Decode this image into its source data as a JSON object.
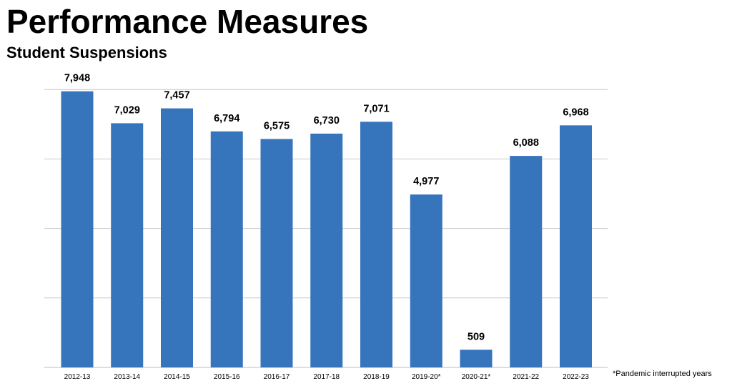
{
  "header": {
    "title": "Performance Measures",
    "subtitle": "Student Suspensions"
  },
  "footnote": "*Pandemic interrupted years",
  "chart_data": {
    "type": "bar",
    "title": "Student Suspensions",
    "xlabel": "",
    "ylabel": "",
    "categories": [
      "2012-13",
      "2013-14",
      "2014-15",
      "2015-16",
      "2016-17",
      "2017-18",
      "2018-19",
      "2019-20*",
      "2020-21*",
      "2021-22",
      "2022-23"
    ],
    "values": [
      7948,
      7029,
      7457,
      6794,
      6575,
      6730,
      7071,
      4977,
      509,
      6088,
      6968
    ],
    "value_labels": [
      "7,948",
      "7,029",
      "7,457",
      "6,794",
      "6,575",
      "6,730",
      "7,071",
      "4,977",
      "509",
      "6,088",
      "6,968"
    ],
    "ylim": [
      0,
      8000
    ],
    "grid": true,
    "bar_color": "#3674BC",
    "grid_color": "#C9C9C9"
  }
}
